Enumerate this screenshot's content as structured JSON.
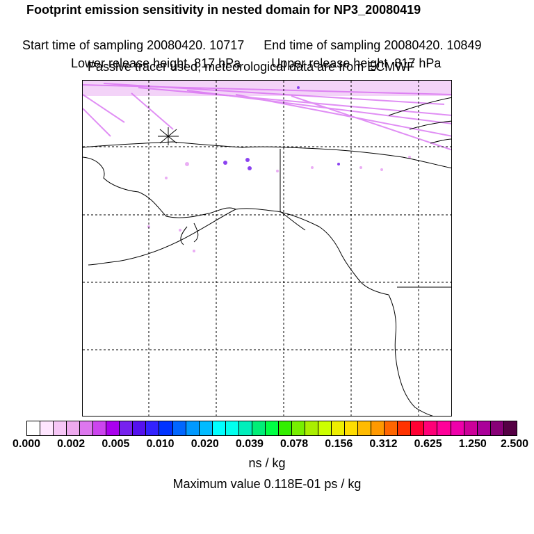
{
  "title": "Footprint emission sensitivity in nested domain for NP3_20080419",
  "start_time": "Start time of sampling 20080420. 10717",
  "end_time": "End time of sampling 20080420. 10849",
  "lower_release": "Lower release height  817 hPa",
  "upper_release": "Upper release height  817 hPa",
  "tracer_info": "Passive tracer used, meteorological data are from ECMWF",
  "colorbar": {
    "segments": [
      "#ffffff",
      "#ffe6ff",
      "#f6c6f6",
      "#eeaaee",
      "#dd77ee",
      "#cc44ee",
      "#aa00ee",
      "#7722ee",
      "#5511ee",
      "#3322ff",
      "#0033ff",
      "#0066ff",
      "#0099ff",
      "#00bbff",
      "#00ffff",
      "#00ffee",
      "#00eebb",
      "#00ee77",
      "#00ff44",
      "#33ee00",
      "#77ee00",
      "#aaee00",
      "#ccff00",
      "#eeee00",
      "#ffdd00",
      "#ffbb00",
      "#ff9900",
      "#ff6600",
      "#ff3300",
      "#ff0033",
      "#ff0077",
      "#ff0099",
      "#ee00aa",
      "#cc0099",
      "#aa0099",
      "#880077",
      "#550044"
    ],
    "labels": [
      "0.000",
      "0.002",
      "0.005",
      "0.010",
      "0.020",
      "0.039",
      "0.078",
      "0.156",
      "0.312",
      "0.625",
      "1.250",
      "2.500"
    ]
  },
  "unit": "ns / kg",
  "max_value": "Maximum value  0.118E-01 ps / kg",
  "map": {
    "receptor_marker": "asterisk",
    "plume_color": "#cc44ee",
    "plume_dark": "#7722ee"
  }
}
